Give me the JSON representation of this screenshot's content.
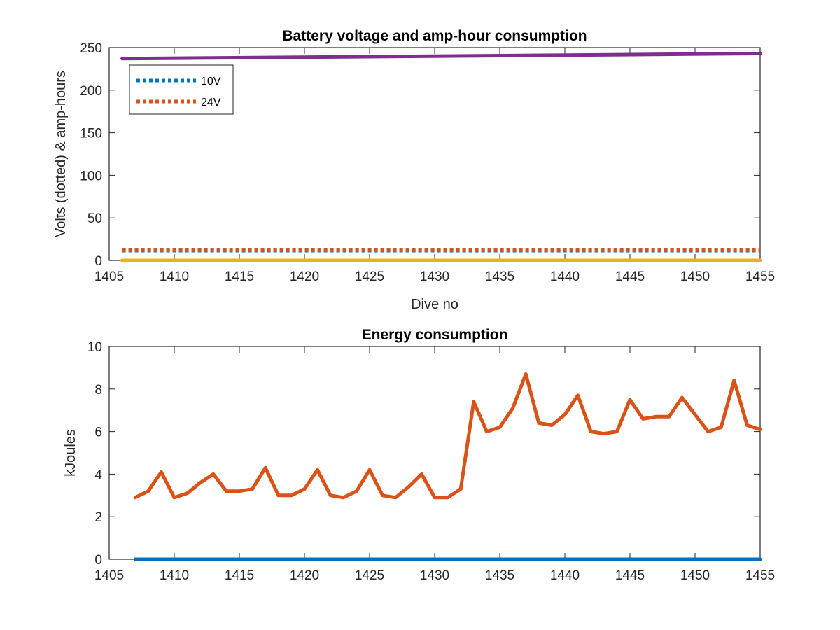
{
  "chart_data": [
    {
      "type": "line",
      "title": "Battery voltage and amp-hour consumption",
      "xlabel": "Dive no",
      "ylabel": "Volts (dotted) & amp-hours",
      "xlim": [
        1405,
        1455
      ],
      "ylim": [
        0,
        250
      ],
      "xticks": [
        "1405",
        "1410",
        "1415",
        "1420",
        "1425",
        "1430",
        "1435",
        "1440",
        "1445",
        "1450",
        "1455"
      ],
      "yticks": [
        "0",
        "50",
        "100",
        "150",
        "200",
        "250"
      ],
      "legend": {
        "placement": "top-left",
        "entries": [
          "10V",
          "24V"
        ]
      },
      "series": [
        {
          "name": "10V",
          "style": "dotted",
          "color": "#0072BD",
          "x": [
            1406,
            1455
          ],
          "values": [
            11.5,
            11.5
          ]
        },
        {
          "name": "24V",
          "style": "dotted",
          "color": "#D95319",
          "x": [
            1406,
            1455
          ],
          "values": [
            12,
            12
          ]
        },
        {
          "style": "solid",
          "color": "#EDB120",
          "x": [
            1406,
            1455
          ],
          "values": [
            0,
            0
          ]
        },
        {
          "style": "solid",
          "color": "#7E2F8E",
          "x": [
            1406,
            1455
          ],
          "values": [
            237,
            243
          ]
        }
      ]
    },
    {
      "type": "line",
      "title": "Energy consumption",
      "xlabel": "",
      "ylabel": "kJoules",
      "xlim": [
        1405,
        1455
      ],
      "ylim": [
        0,
        10
      ],
      "xticks": [
        "1405",
        "1410",
        "1415",
        "1420",
        "1425",
        "1430",
        "1435",
        "1440",
        "1445",
        "1450",
        "1455"
      ],
      "yticks": [
        "0",
        "2",
        "4",
        "6",
        "8",
        "10"
      ],
      "series": [
        {
          "style": "solid",
          "color": "#0072BD",
          "x": [
            1407,
            1455
          ],
          "values": [
            0,
            0
          ]
        },
        {
          "style": "solid",
          "color": "#D95319",
          "x": [
            1407,
            1408,
            1409,
            1410,
            1411,
            1412,
            1413,
            1414,
            1415,
            1416,
            1417,
            1418,
            1419,
            1420,
            1421,
            1422,
            1423,
            1424,
            1425,
            1426,
            1427,
            1428,
            1429,
            1430,
            1431,
            1432,
            1433,
            1434,
            1435,
            1436,
            1437,
            1438,
            1439,
            1440,
            1441,
            1442,
            1443,
            1444,
            1445,
            1446,
            1447,
            1448,
            1449,
            1450,
            1451,
            1452,
            1453,
            1454,
            1455
          ],
          "values": [
            2.9,
            3.2,
            4.1,
            2.9,
            3.1,
            3.6,
            4.0,
            3.2,
            3.2,
            3.3,
            4.3,
            3.0,
            3.0,
            3.3,
            4.2,
            3.0,
            2.9,
            3.2,
            4.2,
            3.0,
            2.9,
            3.4,
            4.0,
            2.9,
            2.9,
            3.3,
            7.4,
            6.0,
            6.2,
            7.1,
            8.7,
            6.4,
            6.3,
            6.8,
            7.7,
            6.0,
            5.9,
            6.0,
            7.5,
            6.6,
            6.7,
            6.7,
            7.6,
            6.8,
            6.0,
            6.2,
            8.4,
            6.3,
            6.1
          ]
        }
      ]
    }
  ]
}
